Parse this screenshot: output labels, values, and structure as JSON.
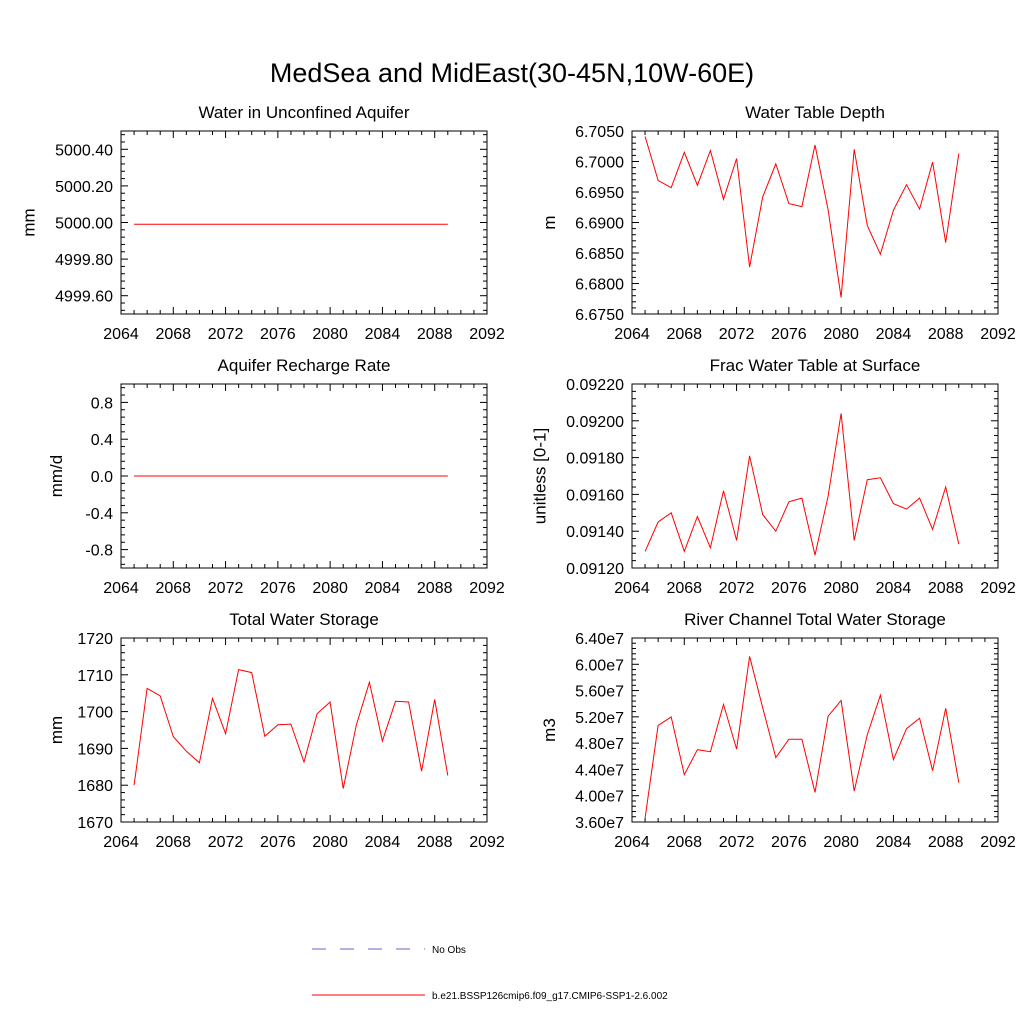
{
  "figure_title": "MedSea and MidEast(30-45N,10W-60E)",
  "colors": {
    "model": "#ff0000",
    "obs": "#6666cc",
    "axis": "#000000"
  },
  "legend": {
    "obs_label": "No Obs",
    "model_label": "b.e21.BSSP126cmip6.f09_g17.CMIP6-SSP1-2.6.002"
  },
  "chart_data": [
    {
      "type": "line",
      "title": "Water in Unconfined Aquifer",
      "xlabel": "",
      "ylabel": "mm",
      "xlim": [
        2064,
        2092
      ],
      "xticks": [
        2064,
        2068,
        2072,
        2076,
        2080,
        2084,
        2088,
        2092
      ],
      "ylim": [
        4999.5,
        5000.5
      ],
      "yticks": [
        4999.6,
        4999.8,
        5000.0,
        5000.2,
        5000.4
      ],
      "ytick_labels": [
        "4999.60",
        "4999.80",
        "5000.00",
        "5000.20",
        "5000.40"
      ],
      "x": [
        2065,
        2066,
        2067,
        2068,
        2069,
        2070,
        2071,
        2072,
        2073,
        2074,
        2075,
        2076,
        2077,
        2078,
        2079,
        2080,
        2081,
        2082,
        2083,
        2084,
        2085,
        2086,
        2087,
        2088,
        2089
      ],
      "series": [
        {
          "name": "b.e21.BSSP126cmip6.f09_g17.CMIP6-SSP1-2.6.002",
          "values": [
            4999.99,
            4999.99,
            4999.99,
            4999.99,
            4999.99,
            4999.99,
            4999.99,
            4999.99,
            4999.99,
            4999.99,
            4999.99,
            4999.99,
            4999.99,
            4999.99,
            4999.99,
            4999.99,
            4999.99,
            4999.99,
            4999.99,
            4999.99,
            4999.99,
            4999.99,
            4999.99,
            4999.99,
            4999.99
          ]
        }
      ]
    },
    {
      "type": "line",
      "title": "Water Table Depth",
      "xlabel": "",
      "ylabel": "m",
      "xlim": [
        2064,
        2092
      ],
      "xticks": [
        2064,
        2068,
        2072,
        2076,
        2080,
        2084,
        2088,
        2092
      ],
      "ylim": [
        6.675,
        6.705
      ],
      "yticks": [
        6.675,
        6.68,
        6.685,
        6.69,
        6.695,
        6.7,
        6.705
      ],
      "ytick_labels": [
        "6.6750",
        "6.6800",
        "6.6850",
        "6.6900",
        "6.6950",
        "6.7000",
        "6.7050"
      ],
      "x": [
        2065,
        2066,
        2067,
        2068,
        2069,
        2070,
        2071,
        2072,
        2073,
        2074,
        2075,
        2076,
        2077,
        2078,
        2079,
        2080,
        2081,
        2082,
        2083,
        2084,
        2085,
        2086,
        2087,
        2088,
        2089
      ],
      "series": [
        {
          "name": "b.e21.BSSP126cmip6.f09_g17.CMIP6-SSP1-2.6.002",
          "values": [
            6.7041,
            6.6969,
            6.6957,
            6.7015,
            6.6961,
            6.7018,
            6.6938,
            6.7005,
            6.6827,
            6.6942,
            6.6996,
            6.6931,
            6.6926,
            6.7027,
            6.6921,
            6.6777,
            6.702,
            6.6895,
            6.6848,
            6.692,
            6.6962,
            6.6922,
            6.6999,
            6.6867,
            6.7013
          ]
        }
      ]
    },
    {
      "type": "line",
      "title": "Aquifer Recharge Rate",
      "xlabel": "",
      "ylabel": "mm/d",
      "xlim": [
        2064,
        2092
      ],
      "xticks": [
        2064,
        2068,
        2072,
        2076,
        2080,
        2084,
        2088,
        2092
      ],
      "ylim": [
        -1.0,
        1.0
      ],
      "yticks": [
        -0.8,
        -0.4,
        0.0,
        0.4,
        0.8
      ],
      "ytick_labels": [
        "-0.8",
        "-0.4",
        "0.0",
        "0.4",
        "0.8"
      ],
      "x": [
        2065,
        2066,
        2067,
        2068,
        2069,
        2070,
        2071,
        2072,
        2073,
        2074,
        2075,
        2076,
        2077,
        2078,
        2079,
        2080,
        2081,
        2082,
        2083,
        2084,
        2085,
        2086,
        2087,
        2088,
        2089
      ],
      "series": [
        {
          "name": "b.e21.BSSP126cmip6.f09_g17.CMIP6-SSP1-2.6.002",
          "values": [
            0,
            0,
            0,
            0,
            0,
            0,
            0,
            0,
            0,
            0,
            0,
            0,
            0,
            0,
            0,
            0,
            0,
            0,
            0,
            0,
            0,
            0,
            0,
            0,
            0
          ]
        }
      ]
    },
    {
      "type": "line",
      "title": "Frac Water Table at Surface",
      "xlabel": "",
      "ylabel": "unitless [0-1]",
      "xlim": [
        2064,
        2092
      ],
      "xticks": [
        2064,
        2068,
        2072,
        2076,
        2080,
        2084,
        2088,
        2092
      ],
      "ylim": [
        0.0912,
        0.0922
      ],
      "yticks": [
        0.0912,
        0.0914,
        0.0916,
        0.0918,
        0.092,
        0.0922
      ],
      "ytick_labels": [
        "0.09120",
        "0.09140",
        "0.09160",
        "0.09180",
        "0.09200",
        "0.09220"
      ],
      "x": [
        2065,
        2066,
        2067,
        2068,
        2069,
        2070,
        2071,
        2072,
        2073,
        2074,
        2075,
        2076,
        2077,
        2078,
        2079,
        2080,
        2081,
        2082,
        2083,
        2084,
        2085,
        2086,
        2087,
        2088,
        2089
      ],
      "series": [
        {
          "name": "b.e21.BSSP126cmip6.f09_g17.CMIP6-SSP1-2.6.002",
          "values": [
            0.09129,
            0.09145,
            0.0915,
            0.09129,
            0.09148,
            0.09131,
            0.09162,
            0.09135,
            0.09181,
            0.09149,
            0.0914,
            0.09156,
            0.09158,
            0.09127,
            0.09159,
            0.09204,
            0.09135,
            0.09168,
            0.09169,
            0.09155,
            0.09152,
            0.09158,
            0.09141,
            0.09164,
            0.09133
          ]
        }
      ]
    },
    {
      "type": "line",
      "title": "Total Water Storage",
      "xlabel": "",
      "ylabel": "mm",
      "xlim": [
        2064,
        2092
      ],
      "xticks": [
        2064,
        2068,
        2072,
        2076,
        2080,
        2084,
        2088,
        2092
      ],
      "ylim": [
        1670,
        1720
      ],
      "yticks": [
        1670,
        1680,
        1690,
        1700,
        1710,
        1720
      ],
      "ytick_labels": [
        "1670",
        "1680",
        "1690",
        "1700",
        "1710",
        "1720"
      ],
      "x": [
        2065,
        2066,
        2067,
        2068,
        2069,
        2070,
        2071,
        2072,
        2073,
        2074,
        2075,
        2076,
        2077,
        2078,
        2079,
        2080,
        2081,
        2082,
        2083,
        2084,
        2085,
        2086,
        2087,
        2088,
        2089
      ],
      "series": [
        {
          "name": "b.e21.BSSP126cmip6.f09_g17.CMIP6-SSP1-2.6.002",
          "values": [
            1680.0,
            1706.3,
            1704.3,
            1693.2,
            1689.2,
            1686.1,
            1703.6,
            1694.0,
            1711.4,
            1710.6,
            1693.3,
            1696.4,
            1696.6,
            1686.3,
            1699.4,
            1702.6,
            1679.1,
            1696.3,
            1708.0,
            1692.0,
            1702.8,
            1702.6,
            1683.8,
            1703.3,
            1682.6
          ]
        }
      ]
    },
    {
      "type": "line",
      "title": "River Channel Total Water Storage",
      "xlabel": "",
      "ylabel": "m3",
      "xlim": [
        2064,
        2092
      ],
      "xticks": [
        2064,
        2068,
        2072,
        2076,
        2080,
        2084,
        2088,
        2092
      ],
      "ylim": [
        36000000,
        64000000
      ],
      "yticks": [
        36000000,
        40000000,
        44000000,
        48000000,
        52000000,
        56000000,
        60000000,
        64000000
      ],
      "ytick_labels": [
        "3.60e7",
        "4.00e7",
        "4.40e7",
        "4.80e7",
        "5.20e7",
        "5.60e7",
        "6.00e7",
        "6.40e7"
      ],
      "x": [
        2065,
        2066,
        2067,
        2068,
        2069,
        2070,
        2071,
        2072,
        2073,
        2074,
        2075,
        2076,
        2077,
        2078,
        2079,
        2080,
        2081,
        2082,
        2083,
        2084,
        2085,
        2086,
        2087,
        2088,
        2089
      ],
      "series": [
        {
          "name": "b.e21.BSSP126cmip6.f09_g17.CMIP6-SSP1-2.6.002",
          "values": [
            36600000,
            50700000,
            52000000,
            43200000,
            47000000,
            46700000,
            53900000,
            47100000,
            61200000,
            53400000,
            45800000,
            48600000,
            48600000,
            40500000,
            52100000,
            54500000,
            40700000,
            49300000,
            55300000,
            45500000,
            50200000,
            51800000,
            43800000,
            53300000,
            42000000
          ]
        }
      ]
    }
  ]
}
